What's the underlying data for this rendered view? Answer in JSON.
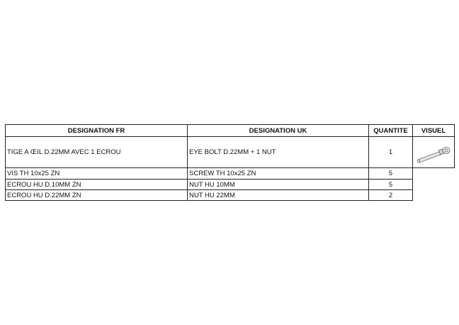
{
  "table": {
    "headers": [
      "DESIGNATION FR",
      "DESIGNATION UK",
      "QUANTITE",
      "VISUEL"
    ],
    "rows": [
      {
        "fr": "TIGE A ŒIL D.22MM AVEC 1 ECROU",
        "uk": "EYE BOLT D.22MM + 1 NUT",
        "qty": "1",
        "visual": "eye-bolt-image"
      },
      {
        "fr": "VIS TH 10x25 ZN",
        "uk": "SCREW TH 10x25 ZN",
        "qty": "5"
      },
      {
        "fr": "ECROU HU D.10MM ZN",
        "uk": "NUT HU 10MM",
        "qty": "5"
      },
      {
        "fr": "ECROU HU D.22MM ZN",
        "uk": "NUT HU 22MM",
        "qty": "2"
      }
    ]
  }
}
